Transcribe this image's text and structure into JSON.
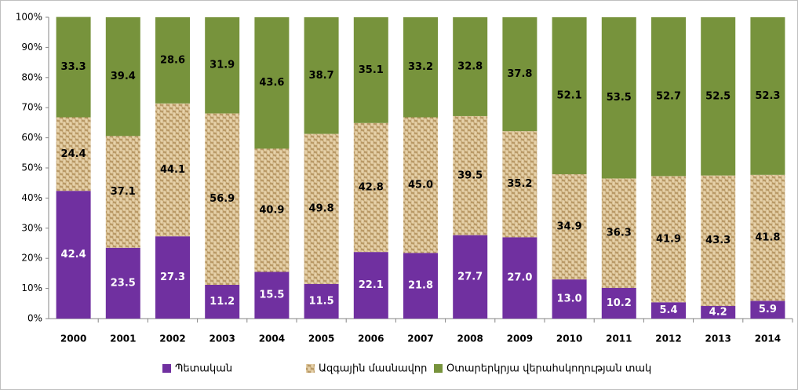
{
  "chart_data": {
    "type": "stacked_bar",
    "categories": [
      "2000",
      "2001",
      "2002",
      "2003",
      "2004",
      "2005",
      "2006",
      "2007",
      "2008",
      "2009",
      "2010",
      "2011",
      "2012",
      "2013",
      "2014"
    ],
    "series": [
      {
        "name": "Պետական",
        "color": "#7030a0",
        "values": [
          42.4,
          23.5,
          27.3,
          11.2,
          15.5,
          11.5,
          22.1,
          21.8,
          27.7,
          27.0,
          13.0,
          10.2,
          5.4,
          4.2,
          5.9
        ],
        "value_labels": [
          "42.4",
          "23.5",
          "27.3",
          "11.2",
          "15.5",
          "11.5",
          "22.1",
          "21.8",
          "27.7",
          "27.0",
          "13.0",
          "10.2",
          "5.4",
          "4.2",
          "5.9"
        ]
      },
      {
        "name": "Ազգային մասնավոր",
        "color": "#d2b888",
        "fill_pattern": "weave",
        "values": [
          24.4,
          37.1,
          44.1,
          56.9,
          40.9,
          49.8,
          42.8,
          45.0,
          39.5,
          35.2,
          34.9,
          36.3,
          41.9,
          43.3,
          41.8
        ],
        "value_labels": [
          "24.4",
          "37.1",
          "44.1",
          "56.9",
          "40.9",
          "49.8",
          "42.8",
          "45.0",
          "39.5",
          "35.2",
          "34.9",
          "36.3",
          "41.9",
          "43.3",
          "41.8"
        ]
      },
      {
        "name": "Օտարերկրյա վերահսկողության տակ",
        "color": "#77933c",
        "values": [
          33.3,
          39.4,
          28.6,
          31.9,
          43.6,
          38.7,
          35.1,
          33.2,
          32.8,
          37.8,
          52.1,
          53.5,
          52.7,
          52.5,
          52.3
        ],
        "value_labels": [
          "33.3",
          "39.4",
          "28.6",
          "31.9",
          "43.6",
          "38.7",
          "35.1",
          "33.2",
          "32.8",
          "37.8",
          "52.1",
          "53.5",
          "52.7",
          "52.5",
          "52.3"
        ]
      }
    ],
    "ylim": [
      0,
      100
    ],
    "yticks": [
      {
        "value": 0,
        "label": "0%"
      },
      {
        "value": 10,
        "label": "10%"
      },
      {
        "value": 20,
        "label": "20%"
      },
      {
        "value": 30,
        "label": "30%"
      },
      {
        "value": 40,
        "label": "40%"
      },
      {
        "value": 50,
        "label": "50%"
      },
      {
        "value": 60,
        "label": "60%"
      },
      {
        "value": 70,
        "label": "70%"
      },
      {
        "value": 80,
        "label": "80%"
      },
      {
        "value": 90,
        "label": "90%"
      },
      {
        "value": 100,
        "label": "100%"
      }
    ],
    "legend": "bottom"
  }
}
